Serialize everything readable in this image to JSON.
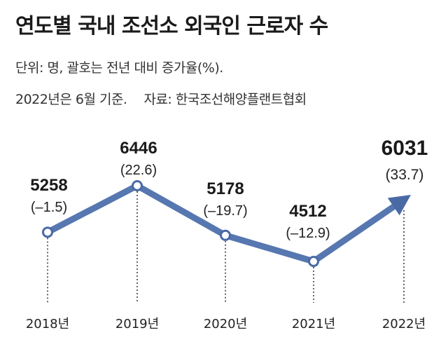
{
  "title": "연도별 국내 조선소 외국인 근로자 수",
  "unit_note": "단위: 명, 괄호는 전년 대비 증가율(%).",
  "date_note": "2022년은 6월 기준.",
  "source": "자료: 한국조선해양플랜트협회",
  "colors": {
    "line": "#5677b0",
    "arrow": "#4a6aa6",
    "dot_fill": "#ffffff",
    "text": "#222222"
  },
  "chart_data": {
    "type": "line",
    "title": "연도별 국내 조선소 외국인 근로자 수",
    "x": [
      "2018년",
      "2019년",
      "2020년",
      "2021년",
      "2022년"
    ],
    "series": [
      {
        "values": [
          5258,
          6446,
          5178,
          4512,
          6031
        ],
        "growth_labels": [
          "(–1.5)",
          "(22.6)",
          "(–19.7)",
          "(–12.9)",
          "(33.7)"
        ],
        "value_labels": [
          "5258",
          "6446",
          "5178",
          "4512",
          "6031"
        ]
      }
    ],
    "grid": false,
    "legend": "none"
  }
}
